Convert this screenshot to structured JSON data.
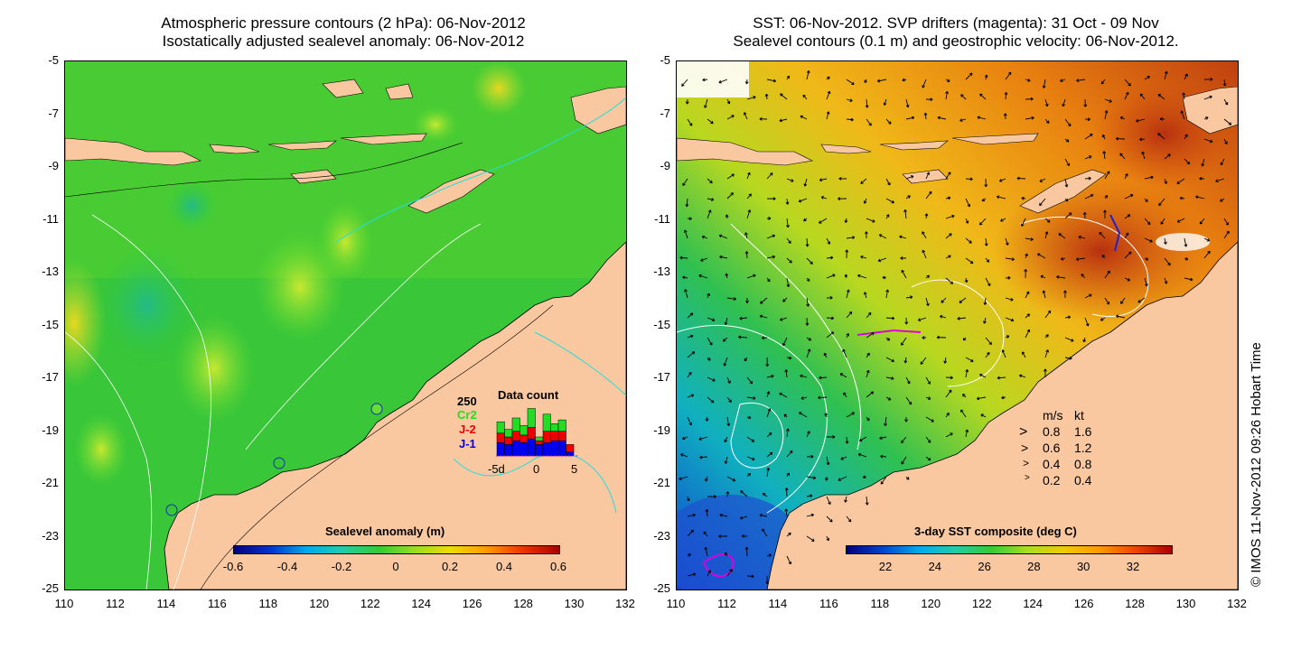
{
  "left_panel": {
    "title_line1": "Atmospheric pressure contours (2 hPa): 06-Nov-2012",
    "title_line2": "Isostatically adjusted sealevel anomaly: 06-Nov-2012",
    "colorbar_title": "Sealevel anomaly (m)",
    "colorbar_ticks": [
      "-0.6",
      "-0.4",
      "-0.2",
      "0",
      "0.2",
      "0.4",
      "0.6"
    ],
    "data_count": {
      "title": "Data count",
      "max_label": "250",
      "series_labels": [
        "Cr2",
        "J-2",
        "J-1"
      ],
      "series_colors": [
        "#22dd22",
        "#ee0000",
        "#0000ee"
      ],
      "x_ticks": [
        "-5d",
        "0",
        "5"
      ],
      "bars": [
        {
          "j1": 0.35,
          "j2": 0.25,
          "cr2": 0.3
        },
        {
          "j1": 0.3,
          "j2": 0.2,
          "cr2": 0.2
        },
        {
          "j1": 0.4,
          "j2": 0.25,
          "cr2": 0.35
        },
        {
          "j1": 0.35,
          "j2": 0.2,
          "cr2": 0.25
        },
        {
          "j1": 0.45,
          "j2": 0.3,
          "cr2": 0.5
        },
        {
          "j1": 0.3,
          "j2": 0.1,
          "cr2": 0.1
        },
        {
          "j1": 0.35,
          "j2": 0.3,
          "cr2": 0.45
        },
        {
          "j1": 0.4,
          "j2": 0.25,
          "cr2": 0.2
        },
        {
          "j1": 0.4,
          "j2": 0.25,
          "cr2": 0.3
        },
        {
          "j1": 0.1,
          "j2": 0.2,
          "cr2": 0.0
        }
      ]
    }
  },
  "right_panel": {
    "title_line1": "SST: 06-Nov-2012. SVP drifters (magenta): 31 Oct - 09 Nov",
    "title_line2": "Sealevel contours (0.1 m) and geostrophic velocity: 06-Nov-2012.",
    "colorbar_title": "3-day SST composite (deg C)",
    "colorbar_ticks": [
      "22",
      "24",
      "26",
      "28",
      "30",
      "32"
    ],
    "velocity_legend": {
      "header_ms": "m/s",
      "header_kt": "kt",
      "rows": [
        {
          "ms": "0.8",
          "kt": "1.6"
        },
        {
          "ms": "0.6",
          "kt": "1.2"
        },
        {
          "ms": "0.4",
          "kt": "0.8"
        },
        {
          "ms": "0.2",
          "kt": "0.4"
        }
      ]
    }
  },
  "axes": {
    "lon_ticks": [
      "110",
      "112",
      "114",
      "116",
      "118",
      "120",
      "122",
      "124",
      "126",
      "128",
      "130",
      "132"
    ],
    "lat_ticks": [
      "-5",
      "-7",
      "-9",
      "-11",
      "-13",
      "-15",
      "-17",
      "-19",
      "-21",
      "-23",
      "-25"
    ],
    "lon_range": [
      110,
      132
    ],
    "lat_range": [
      -25,
      -5
    ]
  },
  "credit": "© IMOS 11-Nov-2012 09:26 Hobart Time",
  "colors": {
    "land": "#f9c8a0",
    "ocean_base_left": "#33cc33",
    "ocean_base_right": "#e8a020"
  }
}
